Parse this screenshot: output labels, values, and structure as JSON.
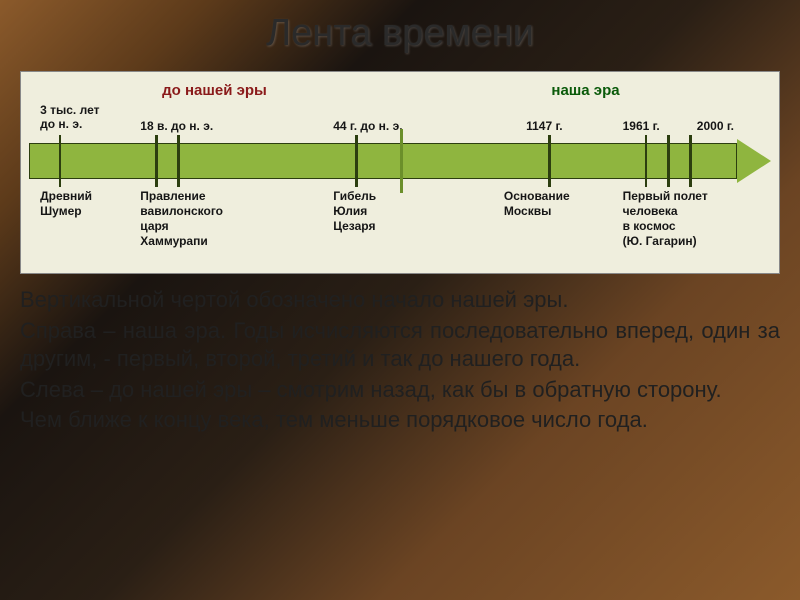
{
  "title": "Лента времени",
  "colors": {
    "panel_bg": "#efeedd",
    "arrow_fill": "#8fb53f",
    "arrow_border": "#2c3e0f",
    "bc_color": "#8a1a1a",
    "ad_color": "#0a5a0a",
    "text": "#161616",
    "divider": "#6b8f2a"
  },
  "eras": {
    "bc": "до нашей эры",
    "ad": "наша эра"
  },
  "top_dates": [
    {
      "text": "3 тыс. лет\nдо н. э.",
      "left_pct": 1.5
    },
    {
      "text": "18 в. до н. э.",
      "left_pct": 15
    },
    {
      "text": "44 г. до н. э.",
      "left_pct": 41
    },
    {
      "text": "1147 г.",
      "left_pct": 67
    },
    {
      "text": "1961 г.",
      "left_pct": 80
    },
    {
      "text": "2000 г.",
      "left_pct": 90
    }
  ],
  "ticks_pct": [
    4,
    17,
    20,
    44,
    70,
    83,
    86,
    89
  ],
  "divider_pct": 50,
  "bottom_labels": [
    {
      "text": "Древний\nШумер",
      "left_pct": 1.5
    },
    {
      "text": "Правление\nвавилонского\nцаря\nХаммурапи",
      "left_pct": 15
    },
    {
      "text": "Гибель\nЮлия\nЦезаря",
      "left_pct": 41
    },
    {
      "text": "Основание\nМосквы",
      "left_pct": 64
    },
    {
      "text": "Первый полет\nчеловека\nв космос\n(Ю. Гагарин)",
      "left_pct": 80
    }
  ],
  "paragraphs": [
    "Вертикальной чертой обозначено начало нашей эры.",
    "Справа – наша эра. Годы исчисляются последовательно вперед, один за другим, - первый, второй, третий и так до нашего года.",
    "Слева – до нашей эры – смотрим назад, как бы в обратную сторону.",
    "Чем ближе к концу века, тем меньше порядковое число года."
  ]
}
